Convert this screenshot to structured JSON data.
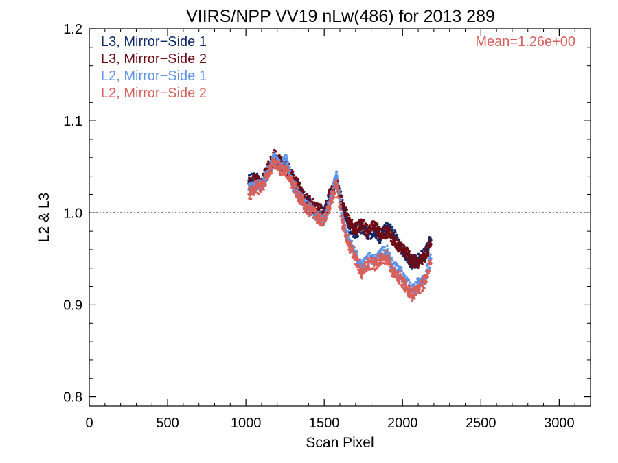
{
  "chart_data": {
    "type": "scatter",
    "title": "VIIRS/NPP VV19 nLw(486) for 2013 289",
    "xlabel": "Scan Pixel",
    "ylabel": "L2 & L3",
    "xlim": [
      0,
      3200
    ],
    "ylim": [
      0.79,
      1.2
    ],
    "xticks": [
      0,
      500,
      1000,
      1500,
      2000,
      2500,
      3000
    ],
    "yticks": [
      0.8,
      0.9,
      1.0,
      1.1,
      1.2
    ],
    "ytick_labels": [
      "0.8",
      "0.9",
      "1.0",
      "1.1",
      "1.2"
    ],
    "reference_line": 1.0,
    "annotation": "Mean=1.26e+00",
    "annotation_color": "#d9605a",
    "legend_position": "top-left",
    "series": [
      {
        "name": "L3, Mirror−Side 1",
        "color": "#0f2a6b",
        "x": [
          1020,
          1060,
          1100,
          1140,
          1180,
          1220,
          1260,
          1300,
          1340,
          1380,
          1420,
          1460,
          1500,
          1540,
          1580,
          1620,
          1660,
          1700,
          1740,
          1780,
          1820,
          1860,
          1900,
          1940,
          1980,
          2020,
          2060,
          2100,
          2140,
          2180
        ],
        "y": [
          1.035,
          1.038,
          1.03,
          1.045,
          1.058,
          1.052,
          1.048,
          1.035,
          1.025,
          1.012,
          1.008,
          1.002,
          0.998,
          1.02,
          1.035,
          1.005,
          0.985,
          0.978,
          0.985,
          0.975,
          0.982,
          0.972,
          0.985,
          0.978,
          0.965,
          0.955,
          0.945,
          0.948,
          0.955,
          0.97
        ]
      },
      {
        "name": "L3, Mirror−Side 2",
        "color": "#6e0a14",
        "x": [
          1020,
          1060,
          1100,
          1140,
          1180,
          1220,
          1260,
          1300,
          1340,
          1380,
          1420,
          1460,
          1500,
          1540,
          1580,
          1620,
          1660,
          1700,
          1740,
          1780,
          1820,
          1860,
          1900,
          1940,
          1980,
          2020,
          2060,
          2100,
          2140,
          2180
        ],
        "y": [
          1.032,
          1.036,
          1.033,
          1.048,
          1.062,
          1.055,
          1.05,
          1.038,
          1.028,
          1.015,
          1.01,
          1.004,
          1.0,
          1.022,
          1.032,
          1.008,
          0.99,
          0.982,
          0.988,
          0.978,
          0.986,
          0.976,
          0.98,
          0.972,
          0.962,
          0.958,
          0.948,
          0.946,
          0.952,
          0.966
        ]
      },
      {
        "name": "L2, Mirror−Side 1",
        "color": "#5f95e8",
        "x": [
          1020,
          1060,
          1100,
          1140,
          1180,
          1220,
          1260,
          1300,
          1340,
          1380,
          1420,
          1460,
          1500,
          1540,
          1580,
          1620,
          1660,
          1700,
          1740,
          1780,
          1820,
          1860,
          1900,
          1940,
          1980,
          2020,
          2060,
          2100,
          2140,
          2180
        ],
        "y": [
          1.025,
          1.03,
          1.028,
          1.045,
          1.058,
          1.05,
          1.058,
          1.03,
          1.02,
          1.008,
          1.004,
          0.996,
          0.992,
          1.015,
          1.04,
          0.99,
          0.97,
          0.955,
          0.94,
          0.95,
          0.948,
          0.955,
          0.958,
          0.94,
          0.938,
          0.925,
          0.915,
          0.922,
          0.928,
          0.95
        ]
      },
      {
        "name": "L2, Mirror−Side 2",
        "color": "#d9605a",
        "x": [
          1020,
          1060,
          1100,
          1140,
          1180,
          1220,
          1260,
          1300,
          1340,
          1380,
          1420,
          1460,
          1500,
          1540,
          1580,
          1620,
          1660,
          1700,
          1740,
          1780,
          1820,
          1860,
          1900,
          1940,
          1980,
          2020,
          2060,
          2100,
          2140,
          2180
        ],
        "y": [
          1.02,
          1.028,
          1.026,
          1.042,
          1.055,
          1.048,
          1.045,
          1.032,
          1.018,
          1.005,
          1.002,
          0.994,
          0.99,
          1.012,
          1.03,
          0.985,
          0.965,
          0.95,
          0.935,
          0.945,
          0.944,
          0.95,
          0.952,
          0.935,
          0.93,
          0.92,
          0.91,
          0.915,
          0.925,
          0.945
        ]
      }
    ]
  }
}
